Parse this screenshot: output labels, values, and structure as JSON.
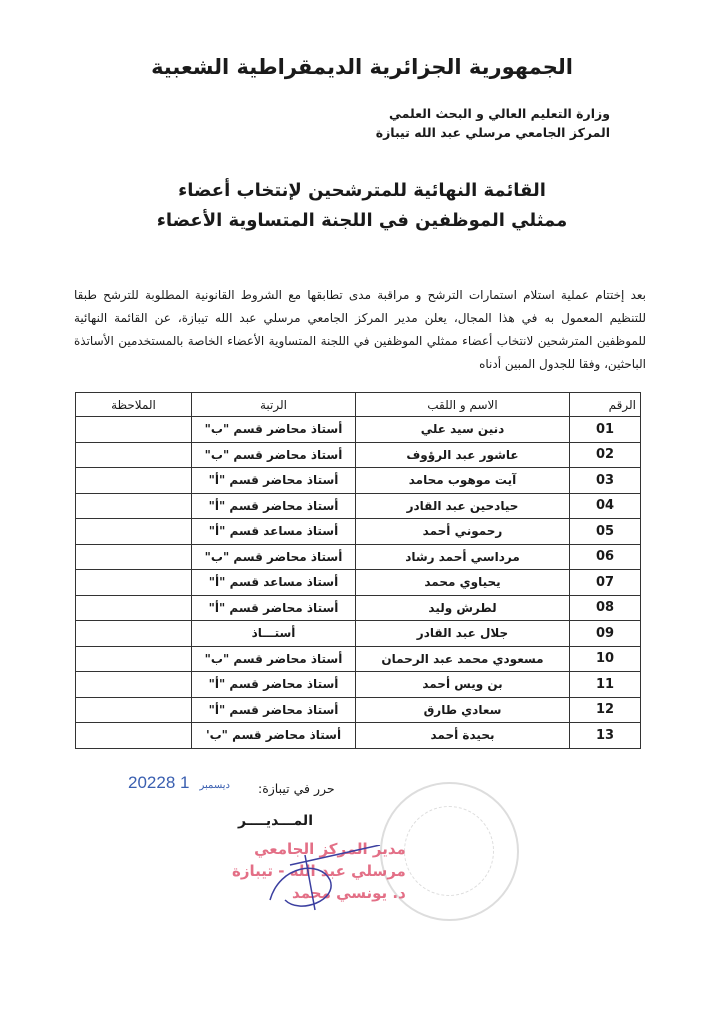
{
  "header": {
    "republic": "الجمهورية الجزائرية الديمقراطية الشعبية",
    "ministry": "وزارة التعليم العالي و البحث العلمي",
    "institution": "المركز الجامعي مرسلي عبد الله تيبازة"
  },
  "title": {
    "line1": "القائمة النهائية للمترشحين لإنتخاب أعضاء",
    "line2": "ممثلي الموظفين في اللجنة المتساوية الأعضاء"
  },
  "body_text": "بعد إختتام عملية استلام استمارات الترشح و مراقبة مدى تطابقها مع الشروط القانونية المطلوبة للترشح طبقا للتنظيم المعمول به في هذا المجال، يعلن مدير المركز الجامعي مرسلي عبد الله تيبازة، عن القائمة النهائية للموظفين المترشحين لانتخاب أعضاء ممثلي الموظفين في اللجنة المتساوية الأعضاء الخاصة بالمستخدمين الأساتذة الباحثين، وفقا للجدول المبين أدناه",
  "table": {
    "headers": [
      "الرقم",
      "الاسم و اللقب",
      "الرتبة",
      "الملاحظة"
    ],
    "rows": [
      [
        "01",
        "دنين سيد علي",
        "أستاذ محاضر قسم \"ب\"",
        ""
      ],
      [
        "02",
        "عاشور عبد الرؤوف",
        "أستاذ محاضر قسم \"ب\"",
        ""
      ],
      [
        "03",
        "آيت موهوب محامد",
        "أستاذ محاضر قسم \"أ\"",
        ""
      ],
      [
        "04",
        "حيادحين عبد القادر",
        "أستاذ محاضر قسم \"أ\"",
        ""
      ],
      [
        "05",
        "رحموني أحمد",
        "أستاذ مساعد قسم \"أ\"",
        ""
      ],
      [
        "06",
        "مرداسي أحمد رشاد",
        "أستاذ محاضر قسم \"ب\"",
        ""
      ],
      [
        "07",
        "يحياوي محمد",
        "أستاذ مساعد قسم \"أ\"",
        ""
      ],
      [
        "08",
        "لطرش وليد",
        "أستاذ محاضر قسم \"أ\"",
        ""
      ],
      [
        "09",
        "جلال عبد القادر",
        "أستـــاذ",
        ""
      ],
      [
        "10",
        "مسعودي محمد عبد الرحمان",
        "أستاذ محاضر قسم \"ب\"",
        ""
      ],
      [
        "11",
        "بن ويس أحمد",
        "أستاذ محاضر قسم \"أ\"",
        ""
      ],
      [
        "12",
        "سعادي طارق",
        "أستاذ محاضر قسم \"أ\"",
        ""
      ],
      [
        "13",
        "بحيدة أحمد",
        "أستاذ محاضر قسم \"ب'",
        ""
      ]
    ]
  },
  "footer": {
    "date_label": "حرر في تيبازة:",
    "date_day": "1 8",
    "date_month": "ديسمبر",
    "date_year": "2022",
    "signatory": "المـــديــــر",
    "stamp_lines": [
      "مدير المركز الجامعي",
      "مرسلي عبد الله - تيبازة",
      "د. يونسي محمد"
    ]
  },
  "colors": {
    "date_ink": "#3a5fb0",
    "stamp_ink": "#e0607a",
    "signature_ink": "#3b3fa0"
  }
}
